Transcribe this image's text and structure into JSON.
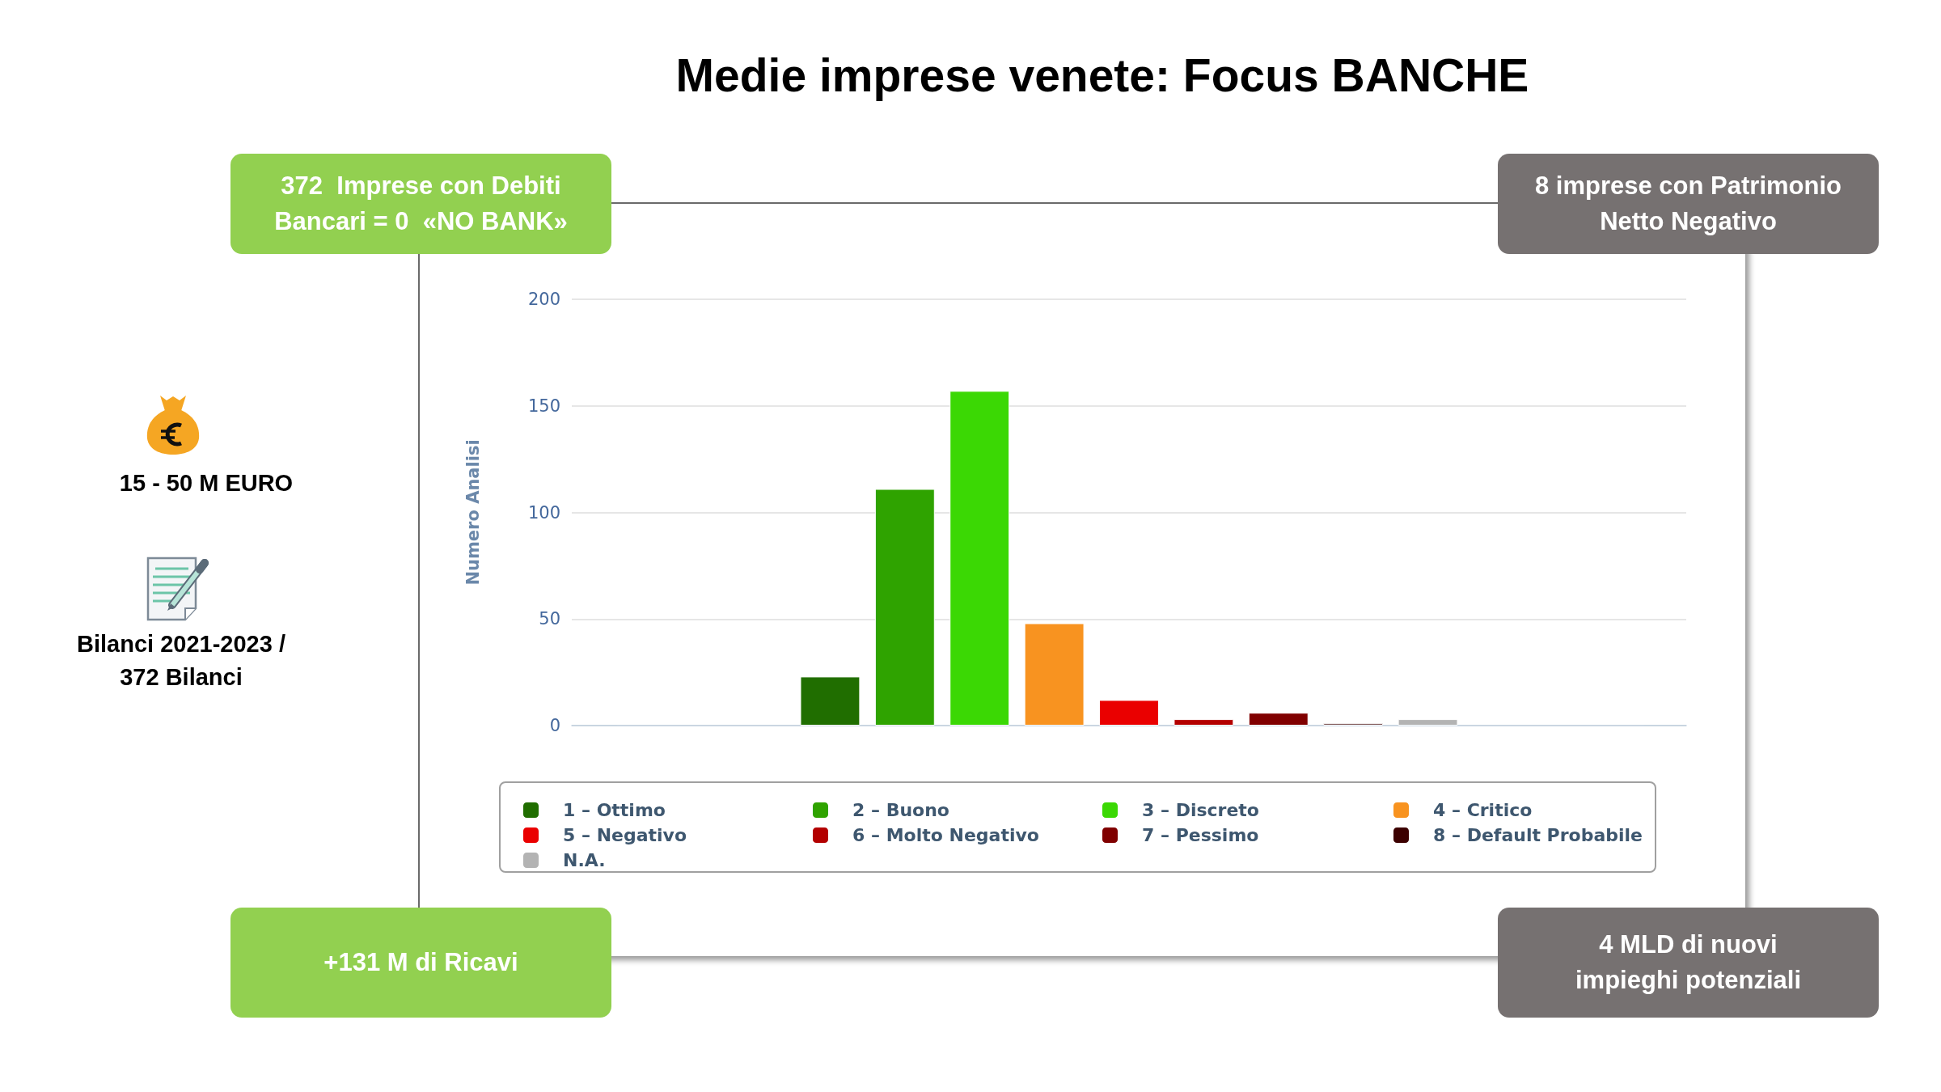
{
  "chart_data": {
    "type": "bar",
    "title": "Medie imprese venete: Focus BANCHE",
    "ylabel": "Numero Analisi",
    "categories": [
      null
    ],
    "series": [
      {
        "name": "1 – Ottimo",
        "color": "#206e00",
        "values": [
          23
        ]
      },
      {
        "name": "2 – Buono",
        "color": "#2fa300",
        "values": [
          111
        ]
      },
      {
        "name": "3 – Discreto",
        "color": "#3bd804",
        "values": [
          157
        ]
      },
      {
        "name": "4 – Critico",
        "color": "#f89320",
        "values": [
          48
        ]
      },
      {
        "name": "5 – Negativo",
        "color": "#ea0000",
        "values": [
          12
        ]
      },
      {
        "name": "6 – Molto Negativo",
        "color": "#b30000",
        "values": [
          3
        ]
      },
      {
        "name": "7 – Pessimo",
        "color": "#800000",
        "values": [
          6
        ]
      },
      {
        "name": "8 – Default Probabile",
        "color": "#3c0000",
        "values": [
          1
        ]
      },
      {
        "name": "N.A.",
        "color": "#b3b3b3",
        "values": [
          3
        ]
      }
    ],
    "ylim": [
      0,
      200
    ],
    "yticks": [
      0,
      50,
      100,
      150,
      200
    ],
    "grid": "y",
    "legend": "bottom",
    "annotations": [
      "372  Imprese con Debiti\nBancari = 0  «NO BANK»",
      "8 imprese con Patrimonio\nNetto Negativo",
      "15 - 50 M EURO",
      "Bilanci 2021-2023 /\n372 Bilanci",
      "+131 M di Ricavi",
      "4 MLD di nuovi\nimpieghi potenziali"
    ]
  }
}
